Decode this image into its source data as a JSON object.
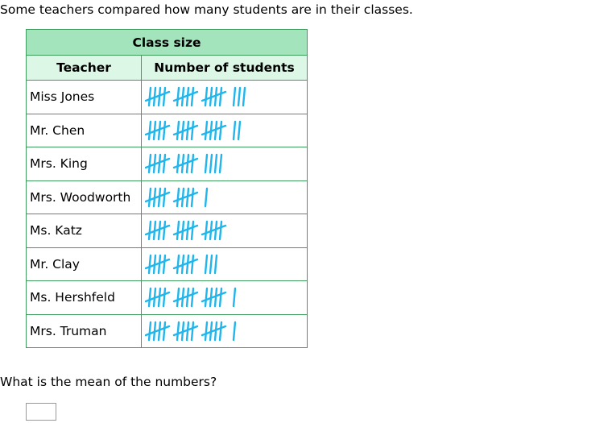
{
  "intro": "Some teachers compared how many students are in their classes.",
  "table": {
    "title": "Class size",
    "headers": [
      "Teacher",
      "Number of students"
    ],
    "rows": [
      {
        "teacher": "Miss Jones",
        "count": 18
      },
      {
        "teacher": "Mr. Chen",
        "count": 17
      },
      {
        "teacher": "Mrs. King",
        "count": 14
      },
      {
        "teacher": "Mrs. Woodworth",
        "count": 11
      },
      {
        "teacher": "Ms. Katz",
        "count": 15
      },
      {
        "teacher": "Mr. Clay",
        "count": 13
      },
      {
        "teacher": "Ms. Hershfeld",
        "count": 16
      },
      {
        "teacher": "Mrs. Truman",
        "count": 16
      }
    ]
  },
  "question": "What is the mean of the numbers?",
  "answer": {
    "value": ""
  },
  "colors": {
    "tally": "#20b6ec",
    "title_bg": "#a3e4bc",
    "header_bg": "#dcf7e5",
    "border": "#3f9e5e"
  }
}
